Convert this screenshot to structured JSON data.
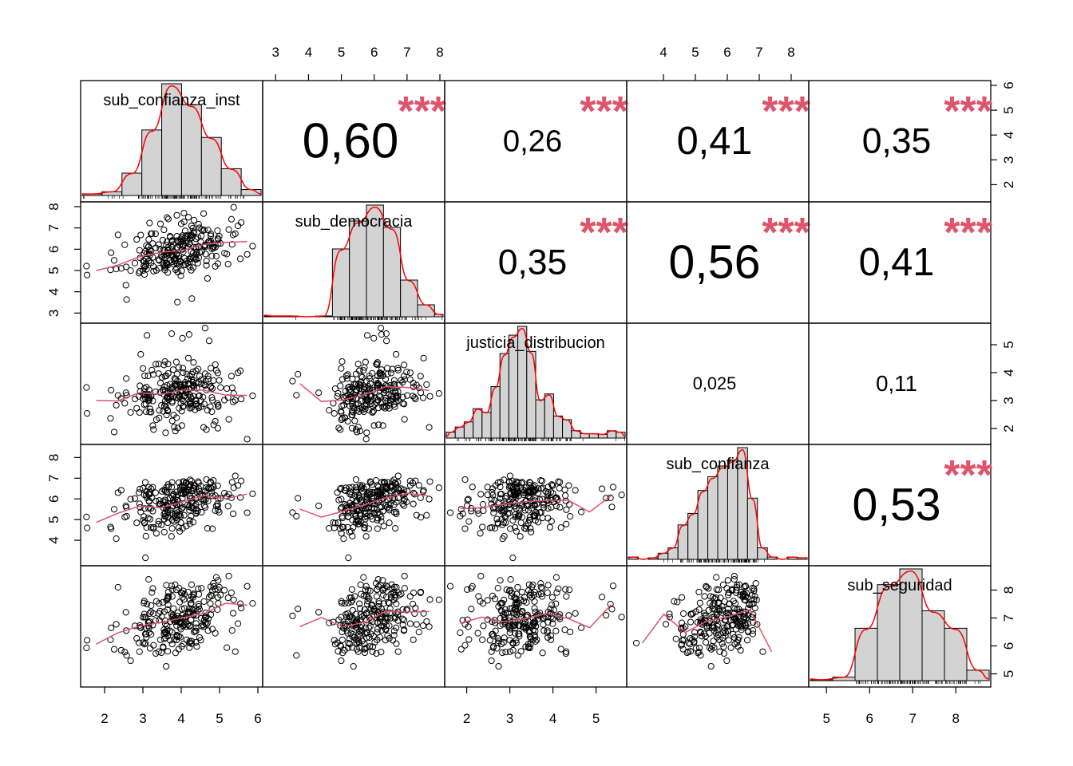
{
  "chart_data": {
    "type": "scatter-matrix",
    "variables": [
      "sub_confianza_inst",
      "sub_democracia",
      "justicia_distribucion",
      "sub_confianza",
      "sub_seguridad"
    ],
    "correlations": [
      {
        "row": 0,
        "col": 1,
        "label": "0,60",
        "value": 0.6,
        "stars": "***"
      },
      {
        "row": 0,
        "col": 2,
        "label": "0,26",
        "value": 0.26,
        "stars": "***"
      },
      {
        "row": 0,
        "col": 3,
        "label": "0,41",
        "value": 0.41,
        "stars": "***"
      },
      {
        "row": 0,
        "col": 4,
        "label": "0,35",
        "value": 0.35,
        "stars": "***"
      },
      {
        "row": 1,
        "col": 2,
        "label": "0,35",
        "value": 0.35,
        "stars": "***"
      },
      {
        "row": 1,
        "col": 3,
        "label": "0,56",
        "value": 0.56,
        "stars": "***"
      },
      {
        "row": 1,
        "col": 4,
        "label": "0,41",
        "value": 0.41,
        "stars": "***"
      },
      {
        "row": 2,
        "col": 3,
        "label": "0,025",
        "value": 0.025,
        "stars": ""
      },
      {
        "row": 2,
        "col": 4,
        "label": "0,11",
        "value": 0.11,
        "stars": ""
      },
      {
        "row": 3,
        "col": 4,
        "label": "0,53",
        "value": 0.53,
        "stars": "***"
      }
    ],
    "axes": [
      {
        "range": [
          1.5,
          6.0
        ],
        "ticks": [
          "2",
          "3",
          "4",
          "5",
          "6"
        ],
        "tick_values": [
          2,
          3,
          4,
          5,
          6
        ]
      },
      {
        "range": [
          2.75,
          8.0
        ],
        "ticks": [
          "3",
          "4",
          "5",
          "6",
          "7",
          "8"
        ],
        "tick_values": [
          3,
          4,
          5,
          6,
          7,
          8
        ]
      },
      {
        "range": [
          1.6,
          5.6
        ],
        "ticks": [
          "2",
          "3",
          "4",
          "5"
        ],
        "tick_values": [
          2,
          3,
          4,
          5
        ]
      },
      {
        "range": [
          3.0,
          8.4
        ],
        "ticks": [
          "4",
          "5",
          "6",
          "7",
          "8"
        ],
        "tick_values": [
          4,
          5,
          6,
          7,
          8
        ]
      },
      {
        "range": [
          4.7,
          8.7
        ],
        "ticks": [
          "5",
          "6",
          "7",
          "8"
        ],
        "tick_values": [
          5,
          6,
          7,
          8
        ]
      }
    ],
    "histograms": [
      {
        "breaks": [
          1.5,
          2.0,
          2.5,
          3.0,
          3.5,
          4.0,
          4.5,
          5.0,
          5.5,
          6.0
        ],
        "counts": [
          2,
          5,
          30,
          88,
          150,
          122,
          78,
          36,
          8
        ]
      },
      {
        "breaks": [
          2.75,
          3.25,
          3.75,
          4.25,
          4.75,
          5.25,
          5.75,
          6.25,
          6.75,
          7.25,
          7.75,
          8.0
        ],
        "counts": [
          1,
          1,
          0,
          1,
          85,
          120,
          140,
          112,
          46,
          15,
          3
        ]
      },
      {
        "breaks": [
          1.6,
          1.8,
          2.0,
          2.2,
          2.4,
          2.6,
          2.8,
          3.0,
          3.2,
          3.4,
          3.6,
          3.8,
          4.0,
          4.2,
          4.4,
          4.6,
          4.8,
          5.0,
          5.2,
          5.4,
          5.6
        ],
        "counts": [
          8,
          15,
          22,
          40,
          35,
          70,
          115,
          140,
          152,
          118,
          52,
          60,
          30,
          25,
          10,
          6,
          6,
          5,
          10,
          8
        ]
      },
      {
        "breaks": [
          3.0,
          3.3,
          3.6,
          3.9,
          4.2,
          4.5,
          4.8,
          5.1,
          5.4,
          5.7,
          6.0,
          6.3,
          6.6,
          6.9,
          7.2,
          7.5,
          7.8,
          8.1,
          8.4
        ],
        "counts": [
          3,
          0,
          2,
          8,
          15,
          45,
          60,
          90,
          108,
          122,
          130,
          146,
          80,
          15,
          3,
          0,
          3,
          2
        ]
      },
      {
        "breaks": [
          4.7,
          5.2,
          5.7,
          6.2,
          6.7,
          7.2,
          7.7,
          8.2,
          8.7
        ],
        "counts": [
          1,
          4,
          60,
          110,
          128,
          80,
          60,
          12
        ]
      }
    ],
    "points": 250
  }
}
